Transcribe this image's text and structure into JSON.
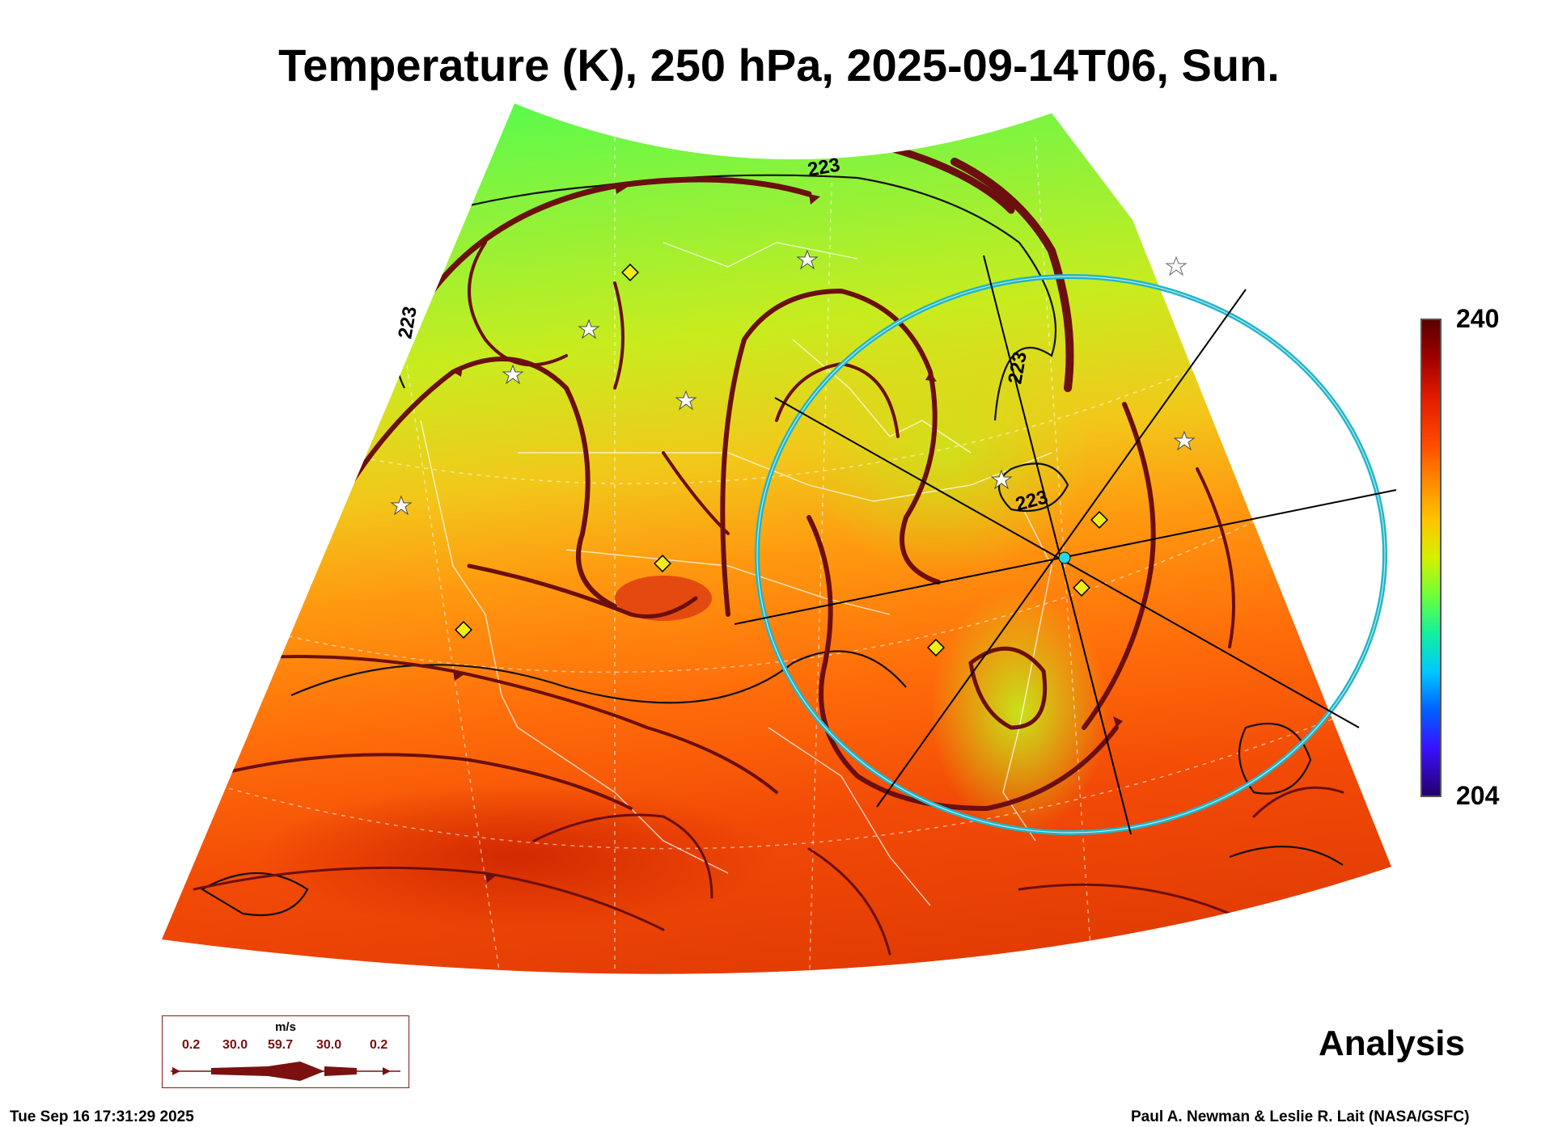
{
  "title": "Temperature (K), 250 hPa, 2025-09-14T06, Sun.",
  "colorbar": {
    "max_label": "240",
    "min_label": "204",
    "min": 204,
    "max": 240
  },
  "contour_labels": [
    "223",
    "223",
    "223",
    "223"
  ],
  "analysis_label": "Analysis",
  "timestamp": "Tue Sep 16 17:31:29 2025",
  "credit": "Paul A. Newman & Leslie R. Lait (NASA/GSFC)",
  "wind_legend": {
    "unit": "m/s",
    "values": [
      "0.2",
      "30.0",
      "59.7",
      "30.0",
      "0.2"
    ]
  },
  "colors": {
    "streamline": "#6b0f0f",
    "range_ring": "#1fb5c9",
    "marker_diamond": "#f0ec1a",
    "marker_star": "#ffffff"
  }
}
